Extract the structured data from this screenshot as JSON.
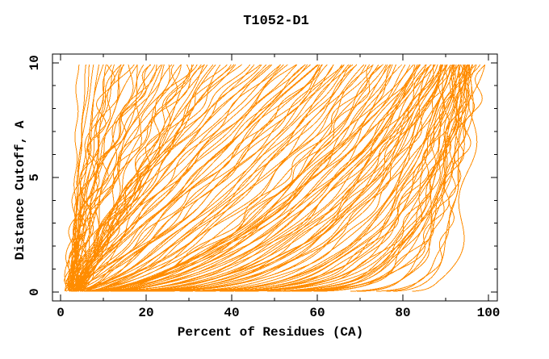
{
  "chart_data": {
    "type": "line",
    "title": "T1052-D1",
    "xlabel": "Percent of Residues (CA)",
    "ylabel": "Distance Cutoff, A",
    "xlim": [
      -2,
      102
    ],
    "ylim": [
      -0.4,
      10.4
    ],
    "x_major_ticks": [
      0,
      20,
      40,
      60,
      80,
      100
    ],
    "x_minor_ticks": [
      10,
      30,
      50,
      70,
      90
    ],
    "y_major_ticks": [
      0,
      5,
      10
    ],
    "y_minor_ticks": [
      1,
      2,
      3,
      4,
      6,
      7,
      8,
      9
    ],
    "grid": false,
    "legend": "none",
    "curve_color": "#ff8c00",
    "axis_color": "#000000",
    "background_color": "#ffffff",
    "series_note": "Each orange curve is one predicted model evaluated against the target: percent of CA residues under a distance cutoff. Curve encoded as [p0,p1,k] with percent(c) = p0 + (p1-p0)*(c/10)^k for cutoff c in [0,10] Angstrom.",
    "curves": [
      [
        5,
        97,
        0.03
      ],
      [
        8,
        96,
        0.05
      ],
      [
        4,
        95,
        0.04
      ],
      [
        10,
        94,
        0.06
      ],
      [
        6,
        92,
        0.05
      ],
      [
        3,
        90,
        0.07
      ],
      [
        12,
        95,
        0.04
      ],
      [
        7,
        93,
        0.06
      ],
      [
        3,
        95,
        0.12
      ],
      [
        4,
        92,
        0.2
      ],
      [
        5,
        96,
        0.15
      ],
      [
        2,
        89,
        0.3
      ],
      [
        6,
        94,
        0.1
      ],
      [
        3,
        88,
        0.35
      ],
      [
        5,
        91,
        0.22
      ],
      [
        4,
        97,
        0.09
      ],
      [
        7,
        93,
        0.18
      ],
      [
        3,
        90,
        0.28
      ],
      [
        2,
        85,
        0.4
      ],
      [
        6,
        98,
        0.13
      ],
      [
        4,
        86,
        0.38
      ],
      [
        5,
        89,
        0.32
      ],
      [
        3,
        93,
        0.16
      ],
      [
        8,
        95,
        0.11
      ],
      [
        4,
        84,
        0.45
      ],
      [
        2,
        91,
        0.25
      ],
      [
        5,
        87,
        0.36
      ],
      [
        3,
        96,
        0.14
      ],
      [
        6,
        90,
        0.3
      ],
      [
        4,
        94,
        0.17
      ],
      [
        2,
        82,
        0.5
      ],
      [
        7,
        92,
        0.21
      ],
      [
        3,
        86,
        0.42
      ],
      [
        5,
        95,
        0.12
      ],
      [
        4,
        88,
        0.33
      ],
      [
        6,
        97,
        0.1
      ],
      [
        2,
        83,
        0.48
      ],
      [
        5,
        93,
        0.19
      ],
      [
        3,
        91,
        0.26
      ],
      [
        4,
        85,
        0.44
      ],
      [
        8,
        96,
        0.12
      ],
      [
        2,
        87,
        0.37
      ],
      [
        6,
        89,
        0.31
      ],
      [
        3,
        94,
        0.15
      ],
      [
        5,
        81,
        0.55
      ],
      [
        4,
        90,
        0.27
      ],
      [
        7,
        95,
        0.13
      ],
      [
        2,
        84,
        0.46
      ],
      [
        5,
        92,
        0.2
      ],
      [
        3,
        88,
        0.34
      ],
      [
        6,
        86,
        0.41
      ],
      [
        4,
        99,
        0.11
      ],
      [
        2,
        93,
        0.18
      ],
      [
        5,
        85,
        0.43
      ],
      [
        3,
        89,
        0.3
      ],
      [
        7,
        91,
        0.24
      ],
      [
        4,
        82,
        0.52
      ],
      [
        6,
        94,
        0.16
      ],
      [
        2,
        90,
        0.29
      ],
      [
        5,
        96,
        0.1
      ],
      [
        3,
        83,
        0.5
      ],
      [
        4,
        87,
        0.39
      ],
      [
        8,
        92,
        0.22
      ],
      [
        1,
        95,
        0.14
      ],
      [
        6,
        88,
        0.35
      ],
      [
        3,
        85,
        0.45
      ],
      [
        5,
        90,
        0.25
      ],
      [
        4,
        93,
        0.17
      ],
      [
        3,
        78,
        0.5
      ],
      [
        4,
        65,
        0.8
      ],
      [
        1,
        72,
        0.6
      ],
      [
        5,
        58,
        1.0
      ],
      [
        3,
        75,
        0.55
      ],
      [
        4,
        48,
        1.2
      ],
      [
        2,
        68,
        0.7
      ],
      [
        6,
        62,
        0.9
      ],
      [
        3,
        55,
        1.1
      ],
      [
        4,
        79,
        0.45
      ],
      [
        2,
        52,
        1.15
      ],
      [
        5,
        70,
        0.65
      ],
      [
        3,
        44,
        1.3
      ],
      [
        4,
        76,
        0.5
      ],
      [
        1,
        60,
        0.95
      ],
      [
        5,
        66,
        0.75
      ],
      [
        3,
        50,
        1.2
      ],
      [
        4,
        73,
        0.6
      ],
      [
        2,
        57,
        1.05
      ],
      [
        6,
        69,
        0.7
      ],
      [
        3,
        42,
        1.35
      ],
      [
        4,
        63,
        0.85
      ],
      [
        2,
        77,
        0.5
      ],
      [
        5,
        54,
        1.1
      ],
      [
        3,
        71,
        0.62
      ],
      [
        4,
        46,
        1.25
      ],
      [
        2,
        64,
        0.8
      ],
      [
        5,
        74,
        0.55
      ],
      [
        3,
        59,
        1.0
      ],
      [
        4,
        67,
        0.72
      ],
      [
        1,
        49,
        1.2
      ],
      [
        6,
        78,
        0.48
      ],
      [
        3,
        61,
        0.9
      ],
      [
        4,
        53,
        1.12
      ],
      [
        2,
        70,
        0.66
      ],
      [
        5,
        45,
        1.3
      ],
      [
        3,
        76,
        0.52
      ],
      [
        4,
        58,
        1.0
      ],
      [
        2,
        66,
        0.78
      ],
      [
        5,
        51,
        1.18
      ],
      [
        3,
        73,
        0.58
      ],
      [
        4,
        41,
        1.4
      ],
      [
        2,
        62,
        0.88
      ],
      [
        6,
        68,
        0.7
      ],
      [
        3,
        56,
        1.08
      ],
      [
        4,
        75,
        0.5
      ],
      [
        1,
        47,
        1.28
      ],
      [
        5,
        64,
        0.82
      ],
      [
        3,
        79,
        0.46
      ],
      [
        4,
        60,
        0.92
      ],
      [
        3,
        4,
        1.0
      ],
      [
        3,
        6,
        1.2
      ],
      [
        2,
        9,
        0.9
      ],
      [
        4,
        12,
        1.5
      ],
      [
        3,
        15,
        1.1
      ],
      [
        2,
        18,
        1.8
      ],
      [
        4,
        21,
        0.8
      ],
      [
        3,
        24,
        1.4
      ],
      [
        2,
        27,
        2.0
      ],
      [
        4,
        30,
        1.0
      ],
      [
        3,
        33,
        1.6
      ],
      [
        2,
        36,
        0.9
      ],
      [
        4,
        39,
        1.3
      ],
      [
        3,
        8,
        2.2
      ],
      [
        2,
        11,
        1.0
      ],
      [
        4,
        14,
        1.7
      ],
      [
        3,
        17,
        0.85
      ],
      [
        2,
        20,
        1.45
      ],
      [
        4,
        23,
        2.1
      ],
      [
        3,
        26,
        1.05
      ],
      [
        2,
        29,
        1.55
      ],
      [
        4,
        32,
        0.95
      ],
      [
        3,
        35,
        1.75
      ],
      [
        2,
        38,
        1.15
      ],
      [
        4,
        10,
        2.4
      ],
      [
        3,
        13,
        1.25
      ],
      [
        2,
        16,
        1.9
      ],
      [
        4,
        19,
        1.0
      ],
      [
        3,
        22,
        1.5
      ],
      [
        2,
        25,
        2.3
      ],
      [
        4,
        28,
        1.1
      ],
      [
        3,
        31,
        1.65
      ],
      [
        2,
        34,
        0.9
      ],
      [
        4,
        37,
        1.35
      ],
      [
        3,
        7,
        1.85
      ],
      [
        2,
        40,
        1.05
      ],
      [
        4,
        16,
        2.5
      ],
      [
        3,
        28,
        0.75
      ],
      [
        2,
        22,
        1.6
      ],
      [
        4,
        34,
        1.2
      ],
      [
        3,
        12,
        2.0
      ],
      [
        2,
        30,
        0.8
      ],
      [
        4,
        25,
        1.4
      ],
      [
        3,
        38,
        1.0
      ],
      [
        2,
        14,
        2.2
      ]
    ]
  }
}
